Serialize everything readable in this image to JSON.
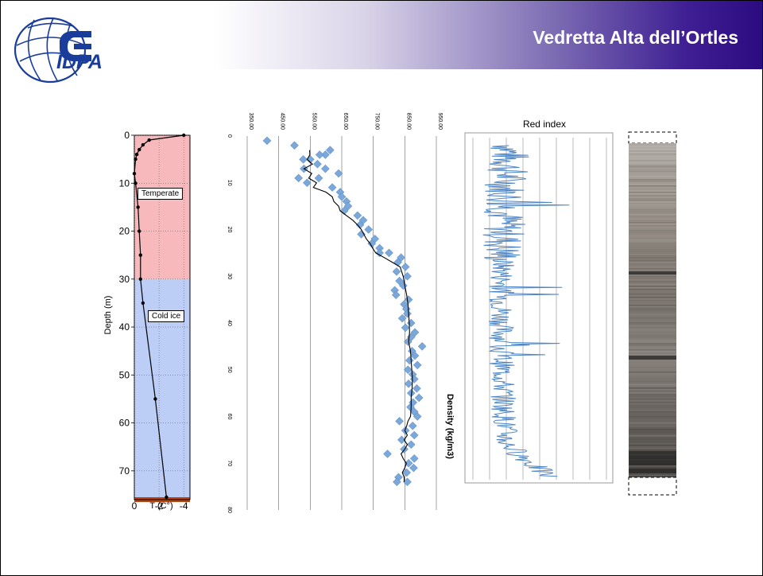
{
  "slide": {
    "title": "Vedretta Alta dell’Ortles",
    "logo_text": "IDPA",
    "colors": {
      "header_dark": "#2c0b80",
      "temperate_zone": "#f8b9bd",
      "cold_zone": "#bccdf6",
      "bedrock": "#b84310",
      "density_points": "#7ba7d9",
      "red_index_line": "#4f86c6"
    }
  },
  "chart_data": [
    {
      "type": "line",
      "xlabel": "T (C°)",
      "ylabel": "Depth (m)",
      "x_ticks": [
        "0",
        "-2",
        "-4"
      ],
      "y_ticks": [
        "0",
        "10",
        "20",
        "30",
        "40",
        "50",
        "60",
        "70"
      ],
      "xlim": [
        0,
        -4.5
      ],
      "ylim": [
        0,
        76
      ],
      "grid": true,
      "zones": [
        {
          "label": "Temperate",
          "from": 0,
          "to": 30
        },
        {
          "label": "Cold ice",
          "from": 30,
          "to": 75.5
        },
        {
          "label": "",
          "from": 75.5,
          "to": 76.5
        }
      ],
      "series": [
        {
          "x": [
            -4,
            -1.2,
            -0.7,
            -0.4,
            -0.2,
            -0.1,
            0,
            -0.1,
            -0.3,
            -0.4,
            -0.5,
            -0.5,
            -0.7,
            -1.7,
            -2.6
          ],
          "y": [
            0,
            1,
            2,
            3,
            4,
            5,
            8,
            10,
            15,
            20,
            25,
            30,
            35,
            55,
            75.5
          ]
        }
      ]
    },
    {
      "type": "scatter",
      "title": "",
      "ylabel": "Density (kg/m3)",
      "x_ticks": [
        "0",
        "10",
        "20",
        "30",
        "40",
        "50",
        "60",
        "70",
        "80"
      ],
      "y_ticks": [
        "350.00",
        "450.00",
        "550.00",
        "650.00",
        "750.00",
        "850.00",
        "950.00"
      ],
      "xlim": [
        0,
        80
      ],
      "ylim": [
        350,
        950
      ],
      "orientation": "rotated",
      "points": [
        [
          1,
          413
        ],
        [
          2,
          500
        ],
        [
          3,
          613
        ],
        [
          4,
          598
        ],
        [
          4,
          580
        ],
        [
          5,
          550
        ],
        [
          5,
          528
        ],
        [
          6,
          573
        ],
        [
          7,
          530
        ],
        [
          7,
          598
        ],
        [
          8,
          640
        ],
        [
          9,
          513
        ],
        [
          9,
          577
        ],
        [
          10,
          540
        ],
        [
          11,
          620
        ],
        [
          12,
          645
        ],
        [
          13,
          650
        ],
        [
          14,
          665
        ],
        [
          15,
          670
        ],
        [
          16,
          658
        ],
        [
          17,
          700
        ],
        [
          18,
          718
        ],
        [
          19,
          708
        ],
        [
          20,
          735
        ],
        [
          21,
          712
        ],
        [
          22,
          755
        ],
        [
          23,
          745
        ],
        [
          24,
          770
        ],
        [
          25,
          800
        ],
        [
          25,
          770
        ],
        [
          26,
          838
        ],
        [
          27,
          828
        ],
        [
          28,
          852
        ],
        [
          29,
          824
        ],
        [
          30,
          858
        ],
        [
          31,
          833
        ],
        [
          32,
          845
        ],
        [
          33,
          818
        ],
        [
          34,
          822
        ],
        [
          35,
          862
        ],
        [
          36,
          848
        ],
        [
          37,
          855
        ],
        [
          38,
          858
        ],
        [
          39,
          842
        ],
        [
          40,
          870
        ],
        [
          41,
          852
        ],
        [
          42,
          882
        ],
        [
          43,
          870
        ],
        [
          44,
          860
        ],
        [
          45,
          905
        ],
        [
          46,
          873
        ],
        [
          47,
          882
        ],
        [
          48,
          865
        ],
        [
          49,
          890
        ],
        [
          50,
          860
        ],
        [
          51,
          875
        ],
        [
          52,
          880
        ],
        [
          53,
          862
        ],
        [
          54,
          888
        ],
        [
          55,
          870
        ],
        [
          56,
          895
        ],
        [
          57,
          876
        ],
        [
          58,
          868
        ],
        [
          59,
          880
        ],
        [
          60,
          890
        ],
        [
          61,
          833
        ],
        [
          62,
          875
        ],
        [
          63,
          852
        ],
        [
          64,
          880
        ],
        [
          65,
          840
        ],
        [
          66,
          870
        ],
        [
          67,
          848
        ],
        [
          68,
          795
        ],
        [
          69,
          880
        ],
        [
          70,
          862
        ],
        [
          71,
          878
        ],
        [
          72,
          856
        ],
        [
          73,
          830
        ],
        [
          74,
          858
        ],
        [
          74,
          825
        ]
      ],
      "series": [
        {
          "x": [
            3,
            4,
            5,
            6,
            7,
            8,
            9,
            10,
            11,
            12,
            13,
            14,
            15,
            16,
            17,
            18,
            19,
            20,
            21,
            22,
            23,
            24,
            25,
            26,
            27,
            28,
            30,
            32,
            34,
            36,
            38,
            40,
            42,
            44,
            46,
            48,
            50,
            52,
            54,
            56,
            58,
            60,
            61,
            62,
            63,
            64,
            65,
            66,
            67,
            68,
            69,
            70,
            71,
            72,
            73,
            74
          ],
          "values": [
            548,
            549,
            540,
            557,
            530,
            555,
            545,
            570,
            560,
            600,
            620,
            625,
            640,
            645,
            665,
            685,
            700,
            712,
            720,
            728,
            740,
            748,
            758,
            785,
            810,
            835,
            845,
            850,
            856,
            860,
            862,
            864,
            865,
            862,
            868,
            870,
            872,
            874,
            873,
            870,
            870,
            868,
            860,
            856,
            850,
            858,
            848,
            858,
            850,
            838,
            845,
            855,
            850,
            842,
            848,
            848
          ]
        }
      ]
    },
    {
      "type": "line",
      "title": "Red index",
      "xlim": [
        0,
        75
      ],
      "grid": true,
      "orientation": "rotated",
      "series": [
        {
          "name": "",
          "x": [],
          "values": []
        }
      ]
    },
    {
      "type": "image",
      "title": "",
      "description_only": true
    }
  ]
}
